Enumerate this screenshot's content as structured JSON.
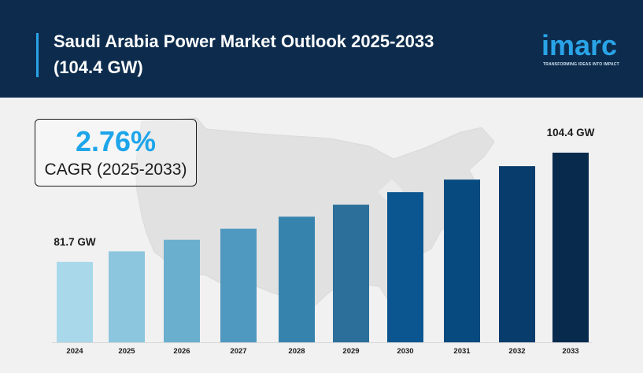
{
  "header": {
    "title_line1": "Saudi Arabia Power Market Outlook 2025-2033",
    "title_line2": "(104.4 GW)"
  },
  "logo": {
    "wordmark": "imarc",
    "tagline": "TRANSFORMING IDEAS INTO IMPACT"
  },
  "cagr": {
    "value": "2.76%",
    "label": "CAGR (2025-2033)"
  },
  "colors": {
    "header_bg": "#0d2c4d",
    "accent": "#2aa4e8",
    "bars": [
      "#a8d8ea",
      "#8cc6de",
      "#6bafcf",
      "#4f98bf",
      "#3684ad",
      "#2b6f9a",
      "#0b5690",
      "#064a80",
      "#073c6c",
      "#082b4d"
    ]
  },
  "chart_data": {
    "type": "bar",
    "categories": [
      "2024",
      "2025",
      "2026",
      "2027",
      "2028",
      "2029",
      "2030",
      "2031",
      "2032",
      "2033"
    ],
    "values": [
      81.7,
      83.9,
      86.3,
      88.6,
      91.1,
      93.6,
      96.2,
      98.8,
      101.6,
      104.4
    ],
    "data_labels": [
      {
        "index": 0,
        "text": "81.7 GW"
      },
      {
        "index": 9,
        "text": "104.4 GW"
      }
    ],
    "title": "",
    "xlabel": "",
    "ylabel": "",
    "ylim": [
      65,
      108
    ]
  }
}
